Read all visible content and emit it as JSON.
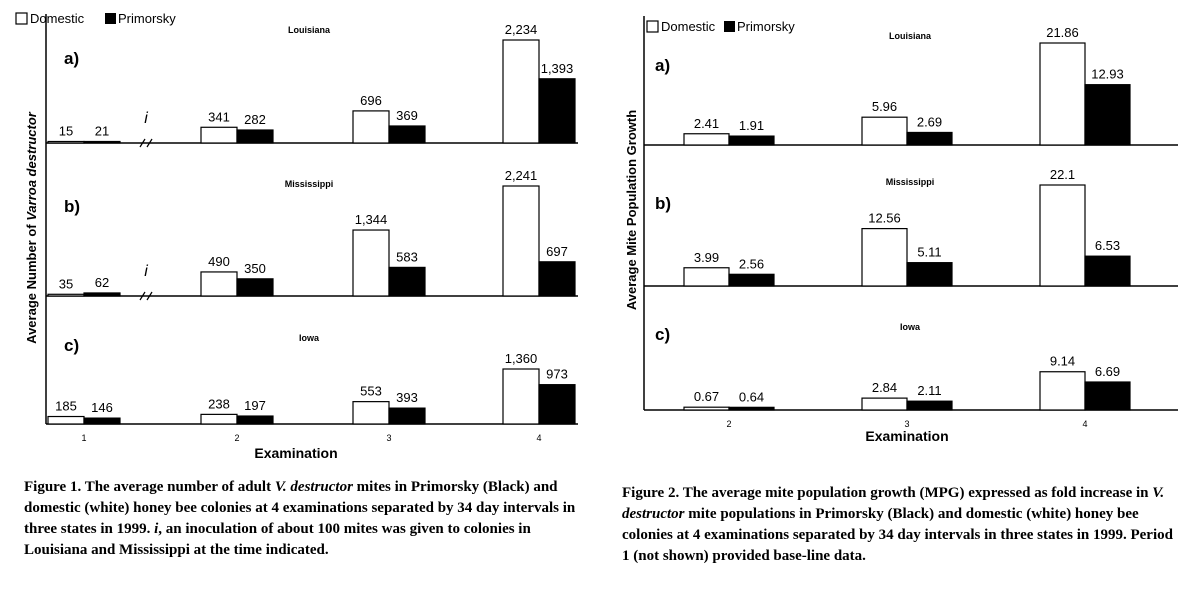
{
  "chart_data": [
    {
      "type": "bar",
      "legend": [
        "Domestic",
        "Primorsky"
      ],
      "legend_position": "top-left",
      "ylabel_parts": [
        "Average Number of ",
        "Varroa destructor"
      ],
      "xlabel": "Examination",
      "categories": [
        "1",
        "2",
        "3",
        "4"
      ],
      "inoculation_marker": "i",
      "panels": [
        {
          "letter": "a)",
          "state": "Louisiana",
          "inoculation": true,
          "series": [
            {
              "name": "Domestic",
              "values": [
                15,
                341,
                696,
                2234
              ],
              "labels": [
                "15",
                "341",
                "696",
                "2,234"
              ]
            },
            {
              "name": "Primorsky",
              "values": [
                21,
                282,
                369,
                1393
              ],
              "labels": [
                "21",
                "282",
                "369",
                "1,393"
              ]
            }
          ]
        },
        {
          "letter": "b)",
          "state": "Mississippi",
          "inoculation": true,
          "series": [
            {
              "name": "Domestic",
              "values": [
                35,
                490,
                1344,
                2241
              ],
              "labels": [
                "35",
                "490",
                "1,344",
                "2,241"
              ]
            },
            {
              "name": "Primorsky",
              "values": [
                62,
                350,
                583,
                697
              ],
              "labels": [
                "62",
                "350",
                "583",
                "697"
              ]
            }
          ]
        },
        {
          "letter": "c)",
          "state": "Iowa",
          "inoculation": false,
          "series": [
            {
              "name": "Domestic",
              "values": [
                185,
                238,
                553,
                1360
              ],
              "labels": [
                "185",
                "238",
                "553",
                "1,360"
              ]
            },
            {
              "name": "Primorsky",
              "values": [
                146,
                197,
                393,
                973
              ],
              "labels": [
                "146",
                "197",
                "393",
                "973"
              ]
            }
          ]
        }
      ]
    },
    {
      "type": "bar",
      "legend": [
        "Domestic",
        "Primorsky"
      ],
      "legend_position": "top-left",
      "ylabel": "Average Mite Population Growth",
      "xlabel": "Examination",
      "categories": [
        "2",
        "3",
        "4"
      ],
      "panels": [
        {
          "letter": "a)",
          "state": "Louisiana",
          "series": [
            {
              "name": "Domestic",
              "values": [
                2.41,
                5.96,
                21.86
              ],
              "labels": [
                "2.41",
                "5.96",
                "21.86"
              ]
            },
            {
              "name": "Primorsky",
              "values": [
                1.91,
                2.69,
                12.93
              ],
              "labels": [
                "1.91",
                "2.69",
                "12.93"
              ]
            }
          ]
        },
        {
          "letter": "b)",
          "state": "Mississippi",
          "series": [
            {
              "name": "Domestic",
              "values": [
                3.99,
                12.56,
                22.1
              ],
              "labels": [
                "3.99",
                "12.56",
                "22.1"
              ]
            },
            {
              "name": "Primorsky",
              "values": [
                2.56,
                5.11,
                6.53
              ],
              "labels": [
                "2.56",
                "5.11",
                "6.53"
              ]
            }
          ]
        },
        {
          "letter": "c)",
          "state": "Iowa",
          "series": [
            {
              "name": "Domestic",
              "values": [
                0.67,
                2.84,
                9.14
              ],
              "labels": [
                "0.67",
                "2.84",
                "9.14"
              ]
            },
            {
              "name": "Primorsky",
              "values": [
                0.64,
                2.11,
                6.69
              ],
              "labels": [
                "0.64",
                "2.11",
                "6.69"
              ]
            }
          ]
        }
      ]
    }
  ],
  "captions": {
    "fig1": {
      "a": "Figure 1. The average number of adult ",
      "b": "V. destructor",
      "c": " mites in Primorsky (Black) and domestic (white) honey bee colonies at 4 examinations separated by 34 day intervals in three states in 1999. ",
      "d": "i",
      "e": ", an inoculation of about 100 mites was given to colonies in Louisiana and Mississippi at the time indicated."
    },
    "fig2": {
      "a": "Figure 2. The average mite population growth (MPG) expressed as fold increase in ",
      "b": "V. destructor",
      "c": " mite populations in Primorsky (Black) and domestic (white) honey bee colonies at 4 examinations separated by 34 day intervals in three states in 1999. Period 1 (not shown) provided base-line data."
    }
  }
}
